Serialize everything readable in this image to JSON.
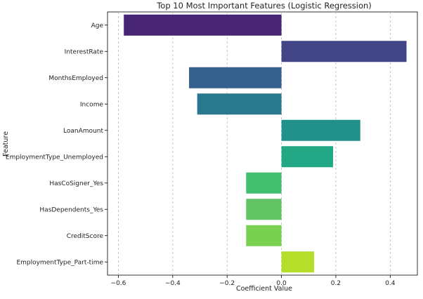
{
  "chart_data": {
    "type": "bar",
    "orientation": "horizontal",
    "title": "Top 10 Most Important Features (Logistic Regression)",
    "xlabel": "Coefficient Value",
    "ylabel": "Feature",
    "categories": [
      "Age",
      "InterestRate",
      "MonthsEmployed",
      "Income",
      "LoanAmount",
      "EmploymentType_Unemployed",
      "HasCoSigner_Yes",
      "HasDependents_Yes",
      "CreditScore",
      "EmploymentType_Part-time"
    ],
    "values": [
      -0.58,
      0.46,
      -0.34,
      -0.31,
      0.29,
      0.19,
      -0.13,
      -0.13,
      -0.13,
      0.12
    ],
    "colors": [
      "#482475",
      "#414487",
      "#355f8d",
      "#2a788e",
      "#21918c",
      "#22a884",
      "#44bf70",
      "#63c465",
      "#7ad151",
      "#b5de2b"
    ],
    "xlim": [
      -0.64,
      0.5
    ],
    "xticks": [
      -0.6,
      -0.4,
      -0.2,
      0.0,
      0.2,
      0.4
    ],
    "xtick_labels": [
      "−0.6",
      "−0.4",
      "−0.2",
      "0.0",
      "0.2",
      "0.4"
    ],
    "grid": "vertical dashed",
    "legend": "none"
  }
}
